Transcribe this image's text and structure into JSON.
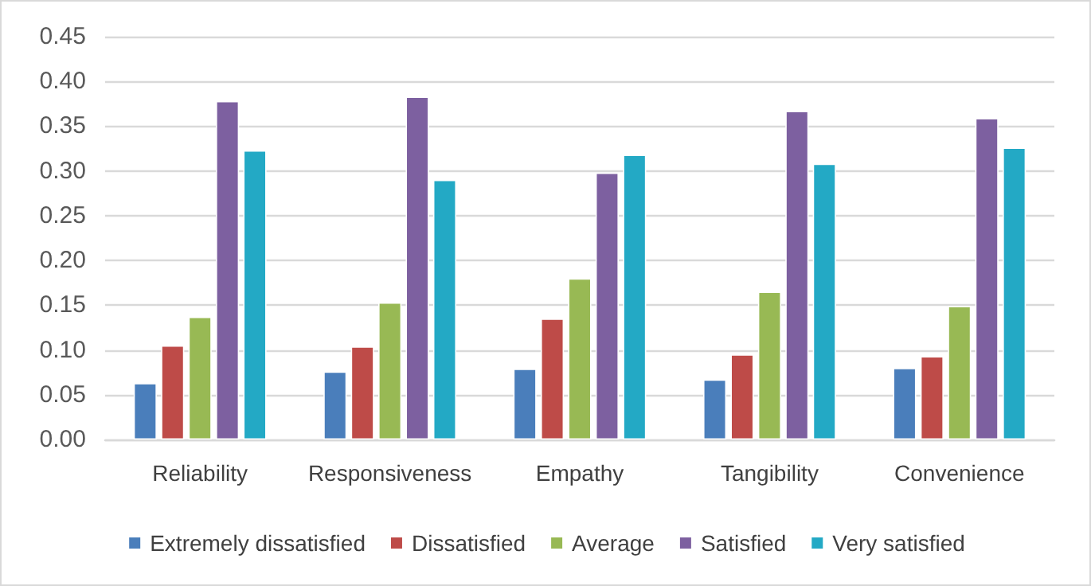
{
  "chart_data": {
    "type": "bar",
    "categories": [
      "Reliability",
      "Responsiveness",
      "Empathy",
      "Tangibility",
      "Convenience"
    ],
    "series": [
      {
        "name": "Extremely dissatisfied",
        "color": "#4a7ebb",
        "values": [
          0.063,
          0.076,
          0.079,
          0.067,
          0.08
        ]
      },
      {
        "name": "Dissatisfied",
        "color": "#be4b48",
        "values": [
          0.105,
          0.104,
          0.135,
          0.095,
          0.093
        ]
      },
      {
        "name": "Average",
        "color": "#98b954",
        "values": [
          0.137,
          0.153,
          0.18,
          0.165,
          0.149
        ]
      },
      {
        "name": "Satisfied",
        "color": "#7d60a0",
        "values": [
          0.378,
          0.383,
          0.298,
          0.367,
          0.359
        ]
      },
      {
        "name": "Very satisfied",
        "color": "#23a9c5",
        "values": [
          0.323,
          0.29,
          0.318,
          0.308,
          0.326
        ]
      }
    ],
    "ylim": [
      0,
      0.45
    ],
    "yticks": [
      {
        "value": 0,
        "label": "0.00"
      },
      {
        "value": 0.05,
        "label": "0.05"
      },
      {
        "value": 0.1,
        "label": "0.10"
      },
      {
        "value": 0.15,
        "label": "0.15"
      },
      {
        "value": 0.2,
        "label": "0.20"
      },
      {
        "value": 0.25,
        "label": "0.25"
      },
      {
        "value": 0.3,
        "label": "0.30"
      },
      {
        "value": 0.35,
        "label": "0.35"
      },
      {
        "value": 0.4,
        "label": "0.40"
      },
      {
        "value": 0.45,
        "label": "0.45"
      }
    ],
    "grid": "y",
    "legend": "bottom"
  }
}
